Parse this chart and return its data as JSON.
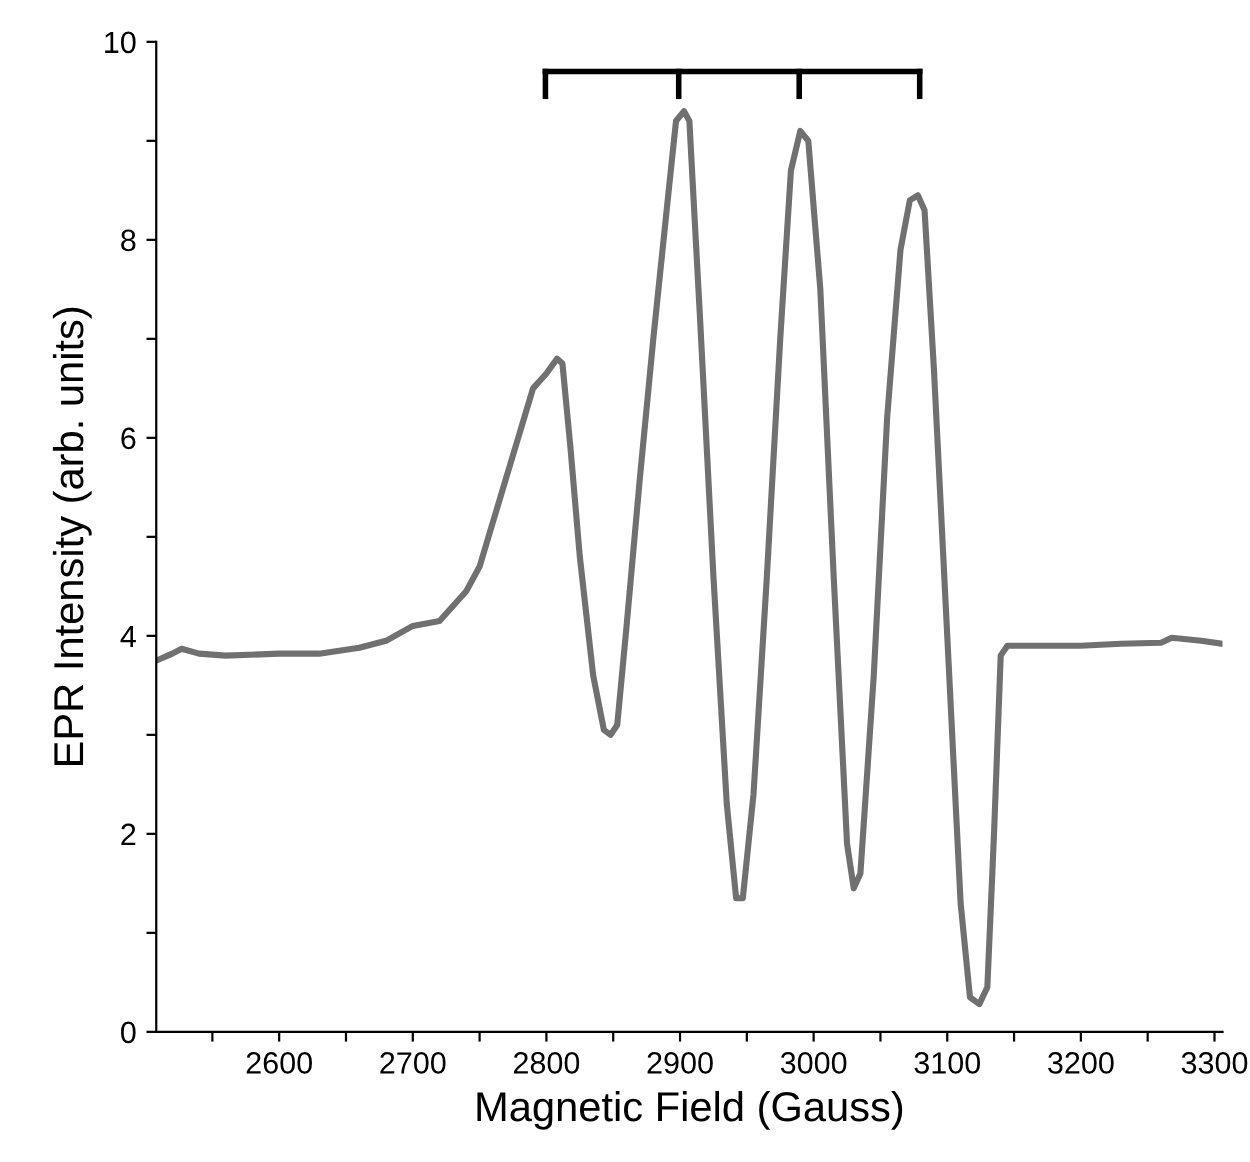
{
  "chart_data": {
    "type": "line",
    "xlabel": "Magnetic Field (Gauss)",
    "ylabel": "EPR Intensity (arb. units)",
    "xlim": [
      2508,
      3306
    ],
    "ylim": [
      0,
      10
    ],
    "xticks": [
      {
        "value": 2550,
        "label": null
      },
      2600,
      {
        "value": 2650,
        "label": null
      },
      2700,
      {
        "value": 2750,
        "label": null
      },
      2800,
      {
        "value": 2850,
        "label": null
      },
      2900,
      {
        "value": 2950,
        "label": null
      },
      3000,
      {
        "value": 3050,
        "label": null
      },
      3100,
      {
        "value": 3150,
        "label": null
      },
      3200,
      {
        "value": 3250,
        "label": null
      },
      3300
    ],
    "yticks": [
      0,
      {
        "value": 1,
        "label": null
      },
      2,
      {
        "value": 3,
        "label": null
      },
      4,
      {
        "value": 5,
        "label": null
      },
      6,
      {
        "value": 7,
        "label": null
      },
      8,
      {
        "value": 9,
        "label": null
      },
      10
    ],
    "grid": false,
    "legend": false,
    "marker": "none",
    "line_style": "solid",
    "series": [
      {
        "color": "#707070",
        "x": [
          2508,
          2520,
          2527,
          2540,
          2560,
          2600,
          2630,
          2660,
          2680,
          2700,
          2720,
          2740,
          2750,
          2760,
          2770,
          2780,
          2790,
          2800,
          2808,
          2812,
          2818,
          2825,
          2835,
          2843,
          2848,
          2853,
          2860,
          2870,
          2880,
          2890,
          2897,
          2903,
          2907,
          2915,
          2925,
          2935,
          2942,
          2947,
          2955,
          2965,
          2975,
          2983,
          2990,
          2996,
          3005,
          3015,
          3025,
          3030,
          3035,
          3045,
          3055,
          3065,
          3072,
          3078,
          3083,
          3090,
          3100,
          3110,
          3117,
          3124,
          3130,
          3135,
          3140,
          3145,
          3170,
          3200,
          3230,
          3260,
          3268,
          3290,
          3306
        ],
        "values": [
          3.75,
          3.82,
          3.87,
          3.82,
          3.8,
          3.82,
          3.82,
          3.88,
          3.95,
          4.1,
          4.15,
          4.45,
          4.7,
          5.15,
          5.6,
          6.05,
          6.5,
          6.65,
          6.8,
          6.75,
          5.9,
          4.8,
          3.6,
          3.05,
          3.0,
          3.1,
          4.1,
          5.6,
          7.0,
          8.3,
          9.2,
          9.3,
          9.2,
          7.2,
          4.6,
          2.3,
          1.35,
          1.35,
          2.4,
          4.6,
          7.0,
          8.7,
          9.1,
          9.0,
          7.5,
          4.6,
          1.9,
          1.45,
          1.6,
          3.6,
          6.2,
          7.9,
          8.4,
          8.45,
          8.3,
          6.7,
          4.0,
          1.3,
          0.35,
          0.28,
          0.45,
          2.0,
          3.8,
          3.9,
          3.9,
          3.9,
          3.92,
          3.93,
          3.98,
          3.95,
          3.92
        ]
      }
    ]
  }
}
